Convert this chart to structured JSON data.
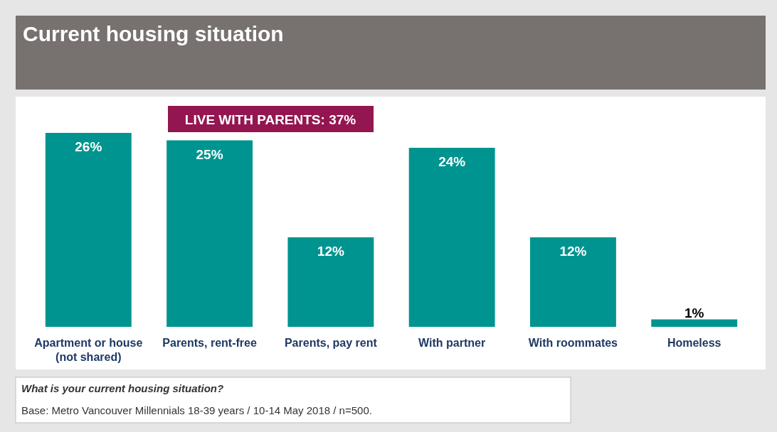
{
  "chart_data": {
    "type": "bar",
    "title": "Current housing situation",
    "categories": [
      "Apartment or house\n(not shared)",
      "Parents, rent-free",
      "Parents, pay rent",
      "With partner",
      "With roommates",
      "Homeless"
    ],
    "values": [
      26,
      25,
      12,
      24,
      12,
      1
    ],
    "value_labels": [
      "26%",
      "25%",
      "12%",
      "24%",
      "12%",
      "1%"
    ],
    "color": "#009490",
    "annotations": [
      "LIVE WITH PARENTS: 37%",
      "What is your current housing situation?",
      "Base: Metro Vancouver Millennials 18-39 years / 10-14 May 2018 / n=500."
    ]
  }
}
